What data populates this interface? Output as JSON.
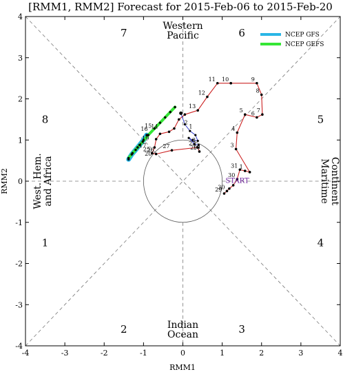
{
  "chart_data": {
    "type": "line",
    "title": "[RMM1, RMM2] Forecast for 2015-Feb-06 to 2015-Feb-20",
    "xlabel": "RMM1",
    "ylabel": "RMM2",
    "xlim": [
      -4,
      4
    ],
    "ylim": [
      -4,
      4
    ],
    "xticks": [
      "-4",
      "-3",
      "-2",
      "-1",
      "0",
      "1",
      "2",
      "3",
      "4"
    ],
    "yticks": [
      "-4",
      "-3",
      "-2",
      "-1",
      "0",
      "1",
      "2",
      "3",
      "4"
    ],
    "phase_numbers": [
      {
        "label": "1",
        "x": -3.5,
        "y": -1.5
      },
      {
        "label": "2",
        "x": -1.5,
        "y": -3.6
      },
      {
        "label": "3",
        "x": 1.5,
        "y": -3.6
      },
      {
        "label": "4",
        "x": 3.5,
        "y": -1.5
      },
      {
        "label": "5",
        "x": 3.5,
        "y": 1.5
      },
      {
        "label": "6",
        "x": 1.5,
        "y": 3.6
      },
      {
        "label": "7",
        "x": -1.5,
        "y": 3.6
      },
      {
        "label": "8",
        "x": -3.5,
        "y": 1.5
      }
    ],
    "regions": {
      "top": [
        "Western",
        "Pacific"
      ],
      "bottom": [
        "Indian",
        "Ocean"
      ],
      "left": [
        "West. Hem.",
        "and Africa"
      ],
      "right": [
        "Maritime",
        "Continent"
      ]
    },
    "legend": [
      {
        "name": "NCEP GFS",
        "color": "#29b6e6"
      },
      {
        "name": "NCEP GEFS",
        "color": "#35e635"
      }
    ],
    "legend_position": "top-right",
    "start_label": "START",
    "observed": {
      "color": "#cc2222",
      "points": [
        {
          "x": 1.05,
          "y": -0.3,
          "label": "29"
        },
        {
          "x": 1.12,
          "y": -0.24,
          "label": "30"
        },
        {
          "x": 1.18,
          "y": -0.18,
          "label": ""
        },
        {
          "x": 1.28,
          "y": -0.1,
          "label": ""
        },
        {
          "x": 1.38,
          "y": 0.05,
          "label": "30"
        },
        {
          "x": 1.45,
          "y": 0.28,
          "label": "31"
        },
        {
          "x": 1.58,
          "y": 0.25,
          "label": "1"
        },
        {
          "x": 1.7,
          "y": 0.22,
          "label": ""
        },
        {
          "x": 1.35,
          "y": 0.78,
          "label": "3"
        },
        {
          "x": 1.38,
          "y": 1.18,
          "label": "4"
        },
        {
          "x": 1.58,
          "y": 1.62,
          "label": "5"
        },
        {
          "x": 1.88,
          "y": 1.55,
          "label": "6"
        },
        {
          "x": 2.02,
          "y": 1.62,
          "label": "7"
        },
        {
          "x": 2.0,
          "y": 2.1,
          "label": "8"
        },
        {
          "x": 1.88,
          "y": 2.38,
          "label": "9"
        },
        {
          "x": 1.22,
          "y": 2.38,
          "label": "10"
        },
        {
          "x": 1.22,
          "y": 2.38,
          "label": ""
        },
        {
          "x": 0.88,
          "y": 2.38,
          "label": "11"
        },
        {
          "x": 0.62,
          "y": 2.05,
          "label": "12"
        },
        {
          "x": 0.38,
          "y": 1.72,
          "label": "13"
        },
        {
          "x": 0.05,
          "y": 1.62,
          "label": ""
        },
        {
          "x": -0.1,
          "y": 1.5,
          "label": ""
        },
        {
          "x": -0.22,
          "y": 1.28,
          "label": ""
        },
        {
          "x": -0.35,
          "y": 1.2,
          "label": ""
        },
        {
          "x": -0.58,
          "y": 1.15,
          "label": ""
        },
        {
          "x": -0.68,
          "y": 1.02,
          "label": ""
        },
        {
          "x": -0.72,
          "y": 0.82,
          "label": ""
        },
        {
          "x": -0.78,
          "y": 0.68,
          "label": "25"
        },
        {
          "x": -0.68,
          "y": 0.66,
          "label": "26"
        },
        {
          "x": -0.28,
          "y": 0.75,
          "label": "27"
        },
        {
          "x": 0.38,
          "y": 0.82,
          "label": "28"
        },
        {
          "x": 0.42,
          "y": 0.72,
          "label": "29"
        }
      ]
    },
    "gfs_forecast": {
      "color": "#29b6e6",
      "points": [
        {
          "x": -0.92,
          "y": 1.12
        },
        {
          "x": -1.0,
          "y": 1.0
        },
        {
          "x": -1.1,
          "y": 0.88
        },
        {
          "x": -1.2,
          "y": 0.76
        },
        {
          "x": -1.3,
          "y": 0.65
        },
        {
          "x": -1.38,
          "y": 0.53
        }
      ]
    },
    "gefs_forecast": {
      "color": "#35e635",
      "points": [
        {
          "x": -0.2,
          "y": 1.8
        },
        {
          "x": -0.32,
          "y": 1.68
        },
        {
          "x": -0.45,
          "y": 1.55
        },
        {
          "x": -0.58,
          "y": 1.42
        },
        {
          "x": -0.72,
          "y": 1.28
        },
        {
          "x": -0.88,
          "y": 1.12
        },
        {
          "x": -1.02,
          "y": 0.96
        },
        {
          "x": -1.15,
          "y": 0.82
        },
        {
          "x": -1.28,
          "y": 0.68
        },
        {
          "x": -1.38,
          "y": 0.56
        }
      ]
    },
    "forecast_start": {
      "x": -0.05,
      "y": 1.65
    },
    "forecast_labels": [
      {
        "x": -0.98,
        "y": 1.22,
        "label": "16"
      },
      {
        "x": -0.88,
        "y": 1.3,
        "label": "15"
      },
      {
        "x": -0.72,
        "y": 1.28,
        "label": "14"
      },
      {
        "x": -1.02,
        "y": 0.82,
        "label": "17"
      },
      {
        "x": -0.88,
        "y": 0.62,
        "label": "20"
      },
      {
        "x": -0.95,
        "y": 1.0,
        "label": "19"
      },
      {
        "x": 0.2,
        "y": 1.28,
        "label": "1"
      },
      {
        "x": 0.08,
        "y": 1.38,
        "label": "2"
      },
      {
        "x": 0.28,
        "y": 0.95,
        "label": "3"
      },
      {
        "x": 0.35,
        "y": 0.78,
        "label": "10"
      }
    ],
    "forecast_path_blue": {
      "color": "#1f2bcc",
      "points": [
        {
          "x": -0.05,
          "y": 1.65
        },
        {
          "x": 0.05,
          "y": 1.38
        },
        {
          "x": 0.18,
          "y": 1.22
        },
        {
          "x": 0.32,
          "y": 1.12
        },
        {
          "x": 0.38,
          "y": 0.98
        },
        {
          "x": 0.25,
          "y": 1.0
        },
        {
          "x": 0.15,
          "y": 1.05
        },
        {
          "x": 0.3,
          "y": 0.9
        },
        {
          "x": 0.4,
          "y": 0.88
        }
      ]
    }
  }
}
